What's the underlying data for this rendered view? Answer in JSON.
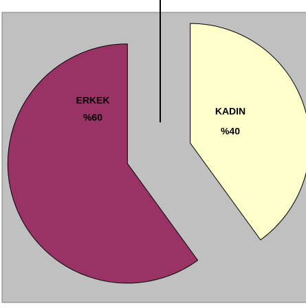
{
  "chart_data": {
    "type": "pie",
    "categories": [
      "KADIN",
      "ERKEK"
    ],
    "values": [
      40,
      60
    ],
    "value_labels": [
      "%40",
      "%60"
    ],
    "colors": [
      "#ffffcc",
      "#993366"
    ]
  }
}
